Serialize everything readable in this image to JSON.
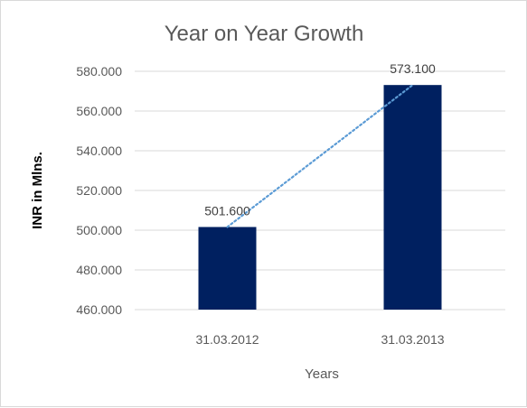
{
  "chart_data": {
    "type": "bar",
    "title": "Year on Year Growth",
    "xlabel": "Years",
    "ylabel": "INR in Mlns.",
    "categories": [
      "31.03.2012",
      "31.03.2013"
    ],
    "values": [
      501.6,
      573.1
    ],
    "value_labels": [
      "501.600",
      "573.100"
    ],
    "ylim": [
      460,
      580
    ],
    "yticks": [
      460,
      480,
      500,
      520,
      540,
      560,
      580
    ],
    "ytick_labels": [
      "460.000",
      "480.000",
      "500.000",
      "520.000",
      "540.000",
      "560.000",
      "580.000"
    ],
    "grid": true,
    "legend": "none",
    "trendline": "linear-dotted",
    "colors": {
      "bar": "#002060",
      "trendline": "#5b9bd5",
      "grid": "#d9d9d9"
    }
  }
}
